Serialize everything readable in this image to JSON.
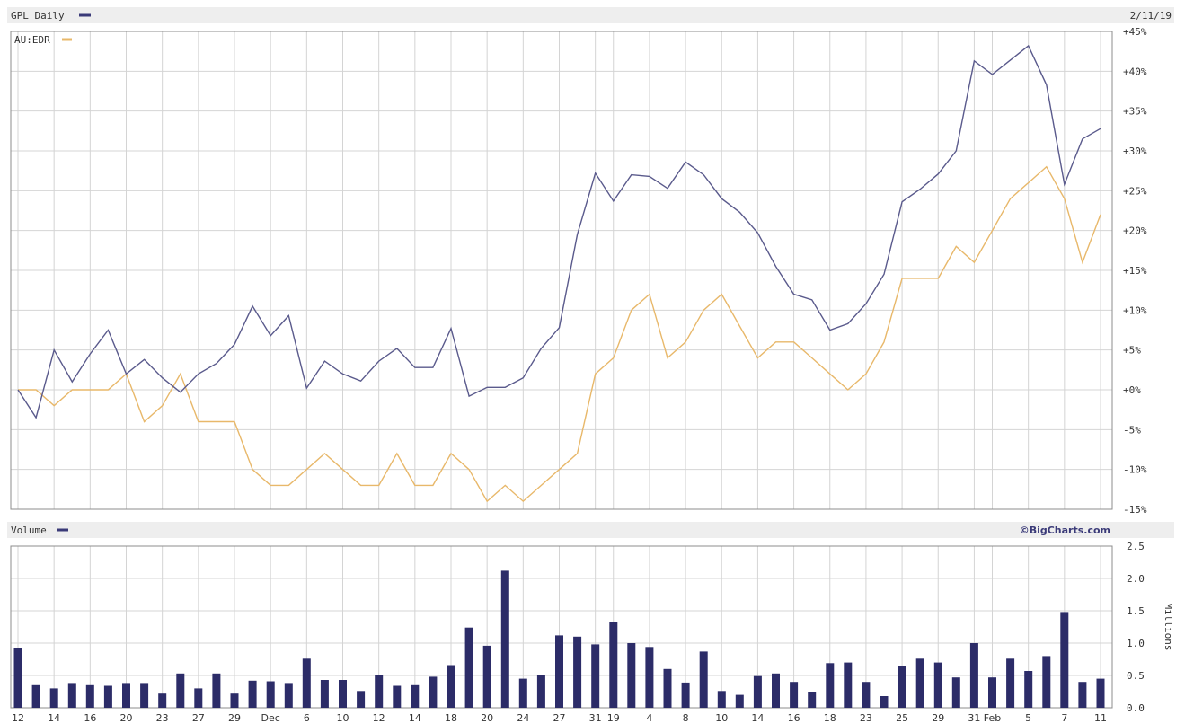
{
  "header": {
    "symbol_label": "GPL Daily",
    "date": "2/11/19",
    "compare_label": "AU:EDR",
    "volume_label": "Volume",
    "copyright": "©BigCharts.com",
    "units_label": "Millions"
  },
  "colors": {
    "primary": "#5a5a8c",
    "compare": "#e8b86a",
    "volume_bar": "#2c2c68",
    "header_band": "#eeeeee"
  },
  "chart_data": [
    {
      "type": "line",
      "name": "price-comparison",
      "ylim": [
        -15,
        45
      ],
      "y_ticks": [
        "+45%",
        "+40%",
        "+35%",
        "+30%",
        "+25%",
        "+20%",
        "+15%",
        "+10%",
        "+5%",
        "+0%",
        "-5%",
        "-10%",
        "-15%"
      ],
      "y_tick_values": [
        45,
        40,
        35,
        30,
        25,
        20,
        15,
        10,
        5,
        0,
        -5,
        -10,
        -15
      ],
      "series": [
        {
          "name": "GPL Daily",
          "values": [
            0,
            -3.5,
            5,
            1,
            4.5,
            7.5,
            2,
            3.8,
            1.5,
            -0.3,
            2,
            3.3,
            5.7,
            10.5,
            6.8,
            9.3,
            0.2,
            3.6,
            2,
            1.1,
            3.6,
            5.2,
            2.8,
            2.8,
            7.7,
            -0.8,
            0.3,
            0.3,
            1.5,
            5.2,
            7.8,
            19.5,
            27.2,
            23.7,
            27,
            26.8,
            25.3,
            28.6,
            27,
            24,
            22.3,
            19.7,
            15.5,
            12,
            11.3,
            7.5,
            8.3,
            10.8,
            14.5,
            23.6,
            25.2,
            27.1,
            30,
            41.3,
            39.6,
            41.4,
            43.2,
            38.3,
            25.8,
            31.5,
            32.8
          ]
        },
        {
          "name": "AU:EDR",
          "values": [
            0,
            0,
            -2,
            0,
            0,
            0,
            2,
            -4,
            -2,
            2,
            -4,
            -4,
            -4,
            -10,
            -12,
            -12,
            -10,
            -8,
            -10,
            -12,
            -12,
            -8,
            -12,
            -12,
            -8,
            -10,
            -14,
            -12,
            -14,
            -12,
            -10,
            -8,
            2,
            4,
            10,
            12,
            4,
            6,
            10,
            12,
            8,
            4,
            6,
            6,
            4,
            2,
            0,
            2,
            6,
            14,
            14,
            14,
            18,
            16,
            20,
            24,
            26,
            28,
            24,
            16,
            22
          ]
        }
      ]
    },
    {
      "type": "bar",
      "name": "volume",
      "ylim": [
        0,
        2.5
      ],
      "ylabel": "Millions",
      "y_ticks": [
        "2.5",
        "2.0",
        "1.5",
        "1.0",
        "0.5",
        "0.0"
      ],
      "y_tick_values": [
        2.5,
        2.0,
        1.5,
        1.0,
        0.5,
        0.0
      ],
      "values": [
        0.92,
        0.35,
        0.3,
        0.37,
        0.35,
        0.34,
        0.37,
        0.37,
        0.22,
        0.53,
        0.3,
        0.53,
        0.22,
        0.42,
        0.41,
        0.37,
        0.76,
        0.43,
        0.43,
        0.26,
        0.5,
        0.34,
        0.35,
        0.48,
        0.66,
        1.24,
        0.96,
        2.12,
        0.45,
        0.5,
        1.12,
        1.1,
        0.98,
        1.33,
        1.0,
        0.94,
        0.6,
        0.39,
        0.87,
        0.26,
        0.2,
        0.49,
        0.53,
        0.4,
        0.24,
        0.69,
        0.7,
        0.4,
        0.18,
        0.64,
        0.76,
        0.7,
        0.47,
        1.0,
        0.47,
        0.76,
        0.57,
        0.8,
        1.48,
        0.4,
        0.45
      ]
    }
  ],
  "x_axis": {
    "labels": [
      {
        "text": "12",
        "idx": 0
      },
      {
        "text": "14",
        "idx": 2
      },
      {
        "text": "16",
        "idx": 4
      },
      {
        "text": "20",
        "idx": 6
      },
      {
        "text": "23",
        "idx": 8
      },
      {
        "text": "27",
        "idx": 10
      },
      {
        "text": "29",
        "idx": 12
      },
      {
        "text": "Dec",
        "idx": 14
      },
      {
        "text": "6",
        "idx": 16
      },
      {
        "text": "10",
        "idx": 18
      },
      {
        "text": "12",
        "idx": 20
      },
      {
        "text": "14",
        "idx": 22
      },
      {
        "text": "18",
        "idx": 24
      },
      {
        "text": "20",
        "idx": 26
      },
      {
        "text": "24",
        "idx": 28
      },
      {
        "text": "27",
        "idx": 30
      },
      {
        "text": "31",
        "idx": 32
      },
      {
        "text": "19",
        "idx": 33
      },
      {
        "text": "4",
        "idx": 35
      },
      {
        "text": "8",
        "idx": 37
      },
      {
        "text": "10",
        "idx": 39
      },
      {
        "text": "14",
        "idx": 41
      },
      {
        "text": "16",
        "idx": 43
      },
      {
        "text": "18",
        "idx": 45
      },
      {
        "text": "23",
        "idx": 47
      },
      {
        "text": "25",
        "idx": 49
      },
      {
        "text": "29",
        "idx": 51
      },
      {
        "text": "31",
        "idx": 53
      },
      {
        "text": "Feb",
        "idx": 54
      },
      {
        "text": "5",
        "idx": 56
      },
      {
        "text": "7",
        "idx": 58
      },
      {
        "text": "11",
        "idx": 60
      }
    ]
  }
}
